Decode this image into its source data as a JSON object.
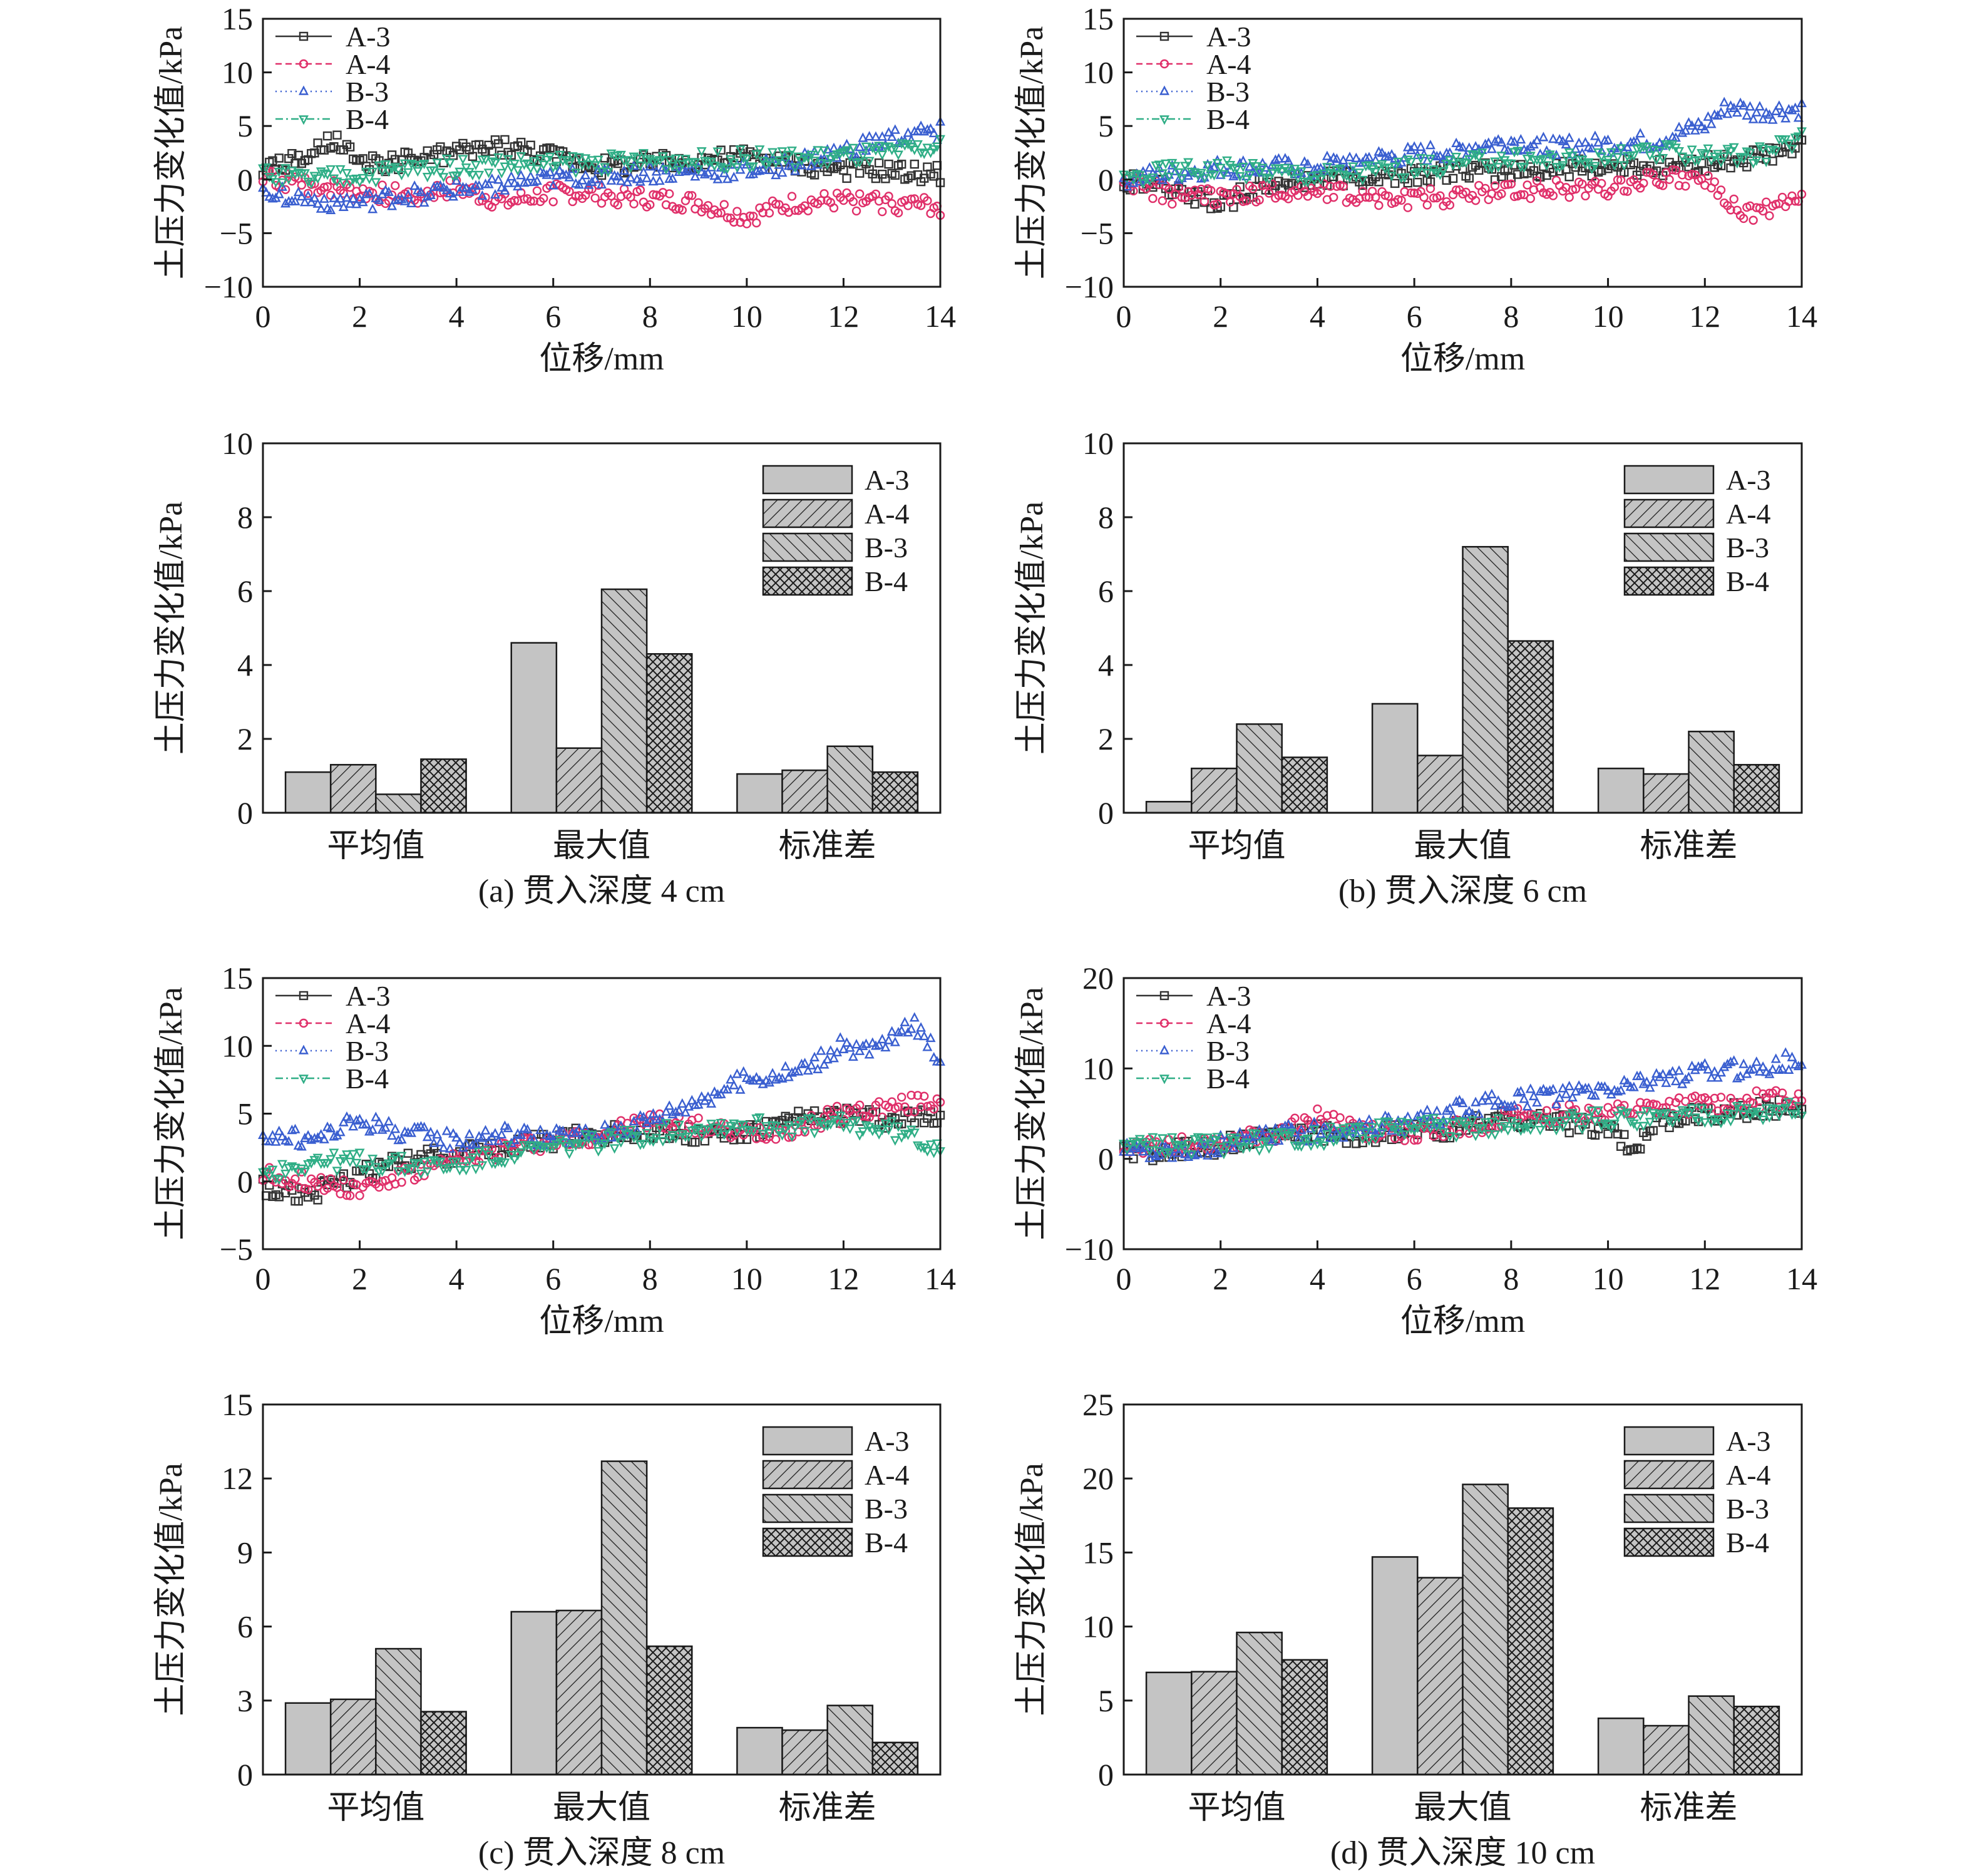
{
  "colors": {
    "A-3": "#333333",
    "A-4": "#e0306a",
    "B-3": "#3a5fd0",
    "B-4": "#2fae86",
    "bar_fill": "#c4c4c4"
  },
  "common": {
    "ylabel": "土压力变化值/kPa",
    "xlabel": "位移/mm",
    "legend": [
      "A-3",
      "A-4",
      "B-3",
      "B-4"
    ],
    "bar_categories": [
      "平均值",
      "最大值",
      "标准差"
    ]
  },
  "chart_data": [
    {
      "id": "a-line",
      "type": "scatter",
      "xlabel": "位移/mm",
      "ylabel": "土压力变化值/kPa",
      "xlim": [
        0,
        14
      ],
      "ylim": [
        -10,
        15
      ],
      "xticks": [
        0,
        2,
        4,
        6,
        8,
        10,
        12,
        14
      ],
      "yticks": [
        -10,
        -5,
        0,
        5,
        10,
        15
      ],
      "legend_position": "top-left",
      "series": [
        {
          "name": "A-3",
          "marker": "square",
          "dash": "",
          "x": [
            0,
            0.5,
            1,
            1.5,
            2,
            3,
            4,
            5,
            6,
            7,
            8,
            9,
            10,
            11,
            12,
            13,
            14
          ],
          "y": [
            1,
            1.5,
            2.2,
            3.8,
            1.2,
            1.8,
            2.5,
            3.2,
            2.2,
            1.2,
            1.5,
            1.8,
            2.2,
            1.4,
            1.0,
            0.8,
            0.5
          ]
        },
        {
          "name": "A-4",
          "marker": "circle",
          "dash": "10,6",
          "x": [
            0,
            1,
            2,
            3,
            4,
            5,
            6,
            7,
            8,
            9,
            10,
            11,
            12,
            13,
            14
          ],
          "y": [
            0,
            -0.5,
            -1.2,
            -1.5,
            -0.8,
            -2.2,
            -1.2,
            -1.4,
            -1.8,
            -2.2,
            -3.5,
            -2.2,
            -2.0,
            -2.2,
            -2.5
          ]
        },
        {
          "name": "B-3",
          "marker": "triangle-up",
          "dash": "2,6",
          "x": [
            0,
            1,
            2,
            3,
            4,
            5,
            6,
            7,
            8,
            9,
            10,
            11,
            12,
            13,
            14
          ],
          "y": [
            -1,
            -2,
            -2.2,
            -1.5,
            -1,
            -0.5,
            0,
            0.3,
            0.5,
            0.6,
            0.8,
            1.5,
            2.5,
            3.8,
            4.5
          ]
        },
        {
          "name": "B-4",
          "marker": "triangle-down",
          "dash": "12,5,3,5",
          "x": [
            0,
            1,
            2,
            3,
            4,
            5,
            6,
            7,
            8,
            9,
            10,
            11,
            12,
            13,
            14
          ],
          "y": [
            0.5,
            0,
            0.5,
            1,
            1.2,
            1.5,
            1.5,
            1.6,
            1.8,
            1.8,
            2,
            2,
            2.2,
            2.5,
            3
          ]
        }
      ]
    },
    {
      "id": "b-line",
      "type": "scatter",
      "xlabel": "位移/mm",
      "ylabel": "土压力变化值/kPa",
      "xlim": [
        0,
        14
      ],
      "ylim": [
        -10,
        15
      ],
      "xticks": [
        0,
        2,
        4,
        6,
        8,
        10,
        12,
        14
      ],
      "yticks": [
        -10,
        -5,
        0,
        5,
        10,
        15
      ],
      "legend_position": "top-left",
      "series": [
        {
          "name": "A-3",
          "marker": "square",
          "dash": "",
          "x": [
            0,
            1,
            2,
            3,
            4,
            5,
            6,
            7,
            8,
            9,
            10,
            11,
            12,
            13,
            14
          ],
          "y": [
            0,
            -0.8,
            -2.2,
            -0.5,
            0,
            0.3,
            0.5,
            0.8,
            0.8,
            1,
            1.2,
            1.2,
            1.5,
            2,
            3
          ]
        },
        {
          "name": "A-4",
          "marker": "circle",
          "dash": "10,6",
          "x": [
            0,
            1,
            2,
            3,
            4,
            5,
            6,
            7,
            8,
            9,
            10,
            11,
            12,
            12.5,
            13,
            14
          ],
          "y": [
            0,
            -1.5,
            -1.5,
            -1.2,
            -1,
            -1.5,
            -1.8,
            -1.5,
            -1,
            -0.8,
            -0.8,
            0.2,
            0,
            -2.5,
            -3,
            -2
          ]
        },
        {
          "name": "B-3",
          "marker": "triangle-up",
          "dash": "2,6",
          "x": [
            0,
            1,
            2,
            3,
            4,
            5,
            6,
            7,
            8,
            9,
            10,
            11,
            12,
            12.5,
            13,
            14
          ],
          "y": [
            0,
            0.5,
            1,
            1,
            1.2,
            1.8,
            2.2,
            2.8,
            3.5,
            3,
            3.2,
            3.5,
            5,
            6.8,
            6.2,
            6.5
          ]
        },
        {
          "name": "B-4",
          "marker": "triangle-down",
          "dash": "12,5,3,5",
          "x": [
            0,
            1,
            2,
            3,
            4,
            5,
            6,
            7,
            8,
            9,
            10,
            11,
            12,
            13,
            14
          ],
          "y": [
            0,
            1,
            1,
            0.8,
            0.5,
            0.8,
            1.2,
            1.5,
            2,
            1.8,
            2,
            2.5,
            2.5,
            2,
            4
          ]
        }
      ]
    },
    {
      "id": "a-bar",
      "type": "bar",
      "caption": "(a) 贯入深度 4 cm",
      "ylabel": "土压力变化值/kPa",
      "ylim": [
        0,
        10
      ],
      "yticks": [
        0,
        2,
        4,
        6,
        8,
        10
      ],
      "categories": [
        "平均值",
        "最大值",
        "标准差"
      ],
      "legend_position": "top-right",
      "series": [
        {
          "name": "A-3",
          "values": [
            1.1,
            4.6,
            1.05
          ]
        },
        {
          "name": "A-4",
          "values": [
            1.3,
            1.75,
            1.15
          ]
        },
        {
          "name": "B-3",
          "values": [
            0.5,
            6.05,
            1.8
          ]
        },
        {
          "name": "B-4",
          "values": [
            1.45,
            4.3,
            1.1
          ]
        }
      ]
    },
    {
      "id": "b-bar",
      "type": "bar",
      "caption": "(b) 贯入深度 6 cm",
      "ylabel": "土压力变化值/kPa",
      "ylim": [
        0,
        10
      ],
      "yticks": [
        0,
        2,
        4,
        6,
        8,
        10
      ],
      "categories": [
        "平均值",
        "最大值",
        "标准差"
      ],
      "legend_position": "top-right",
      "series": [
        {
          "name": "A-3",
          "values": [
            0.3,
            2.95,
            1.2
          ]
        },
        {
          "name": "A-4",
          "values": [
            1.2,
            1.55,
            1.05
          ]
        },
        {
          "name": "B-3",
          "values": [
            2.4,
            7.2,
            2.2
          ]
        },
        {
          "name": "B-4",
          "values": [
            1.5,
            4.65,
            1.3
          ]
        }
      ]
    },
    {
      "id": "c-line",
      "type": "scatter",
      "xlabel": "位移/mm",
      "ylabel": "土压力变化值/kPa",
      "xlim": [
        0,
        14
      ],
      "ylim": [
        -5,
        15
      ],
      "xticks": [
        0,
        2,
        4,
        6,
        8,
        10,
        12,
        14
      ],
      "yticks": [
        -5,
        0,
        5,
        10,
        15
      ],
      "legend_position": "top-left",
      "series": [
        {
          "name": "A-3",
          "marker": "square",
          "dash": "",
          "x": [
            0,
            1,
            2,
            3,
            4,
            5,
            6,
            7,
            8,
            9,
            10,
            11,
            12,
            13,
            14
          ],
          "y": [
            -0.5,
            -1,
            0.5,
            1.5,
            2,
            2.5,
            3,
            3.5,
            3.8,
            3.5,
            3.5,
            4.5,
            5,
            4.5,
            5
          ]
        },
        {
          "name": "A-4",
          "marker": "circle",
          "dash": "10,6",
          "x": [
            0,
            1,
            2,
            3,
            4,
            5,
            6,
            7,
            8,
            9,
            10,
            11,
            12,
            13,
            14
          ],
          "y": [
            0.5,
            0,
            -0.5,
            0.5,
            1.5,
            2.5,
            3,
            3.5,
            4.5,
            4,
            3.5,
            4,
            5,
            5.5,
            6
          ]
        },
        {
          "name": "B-3",
          "marker": "triangle-up",
          "dash": "2,6",
          "x": [
            0,
            1,
            2,
            3,
            4,
            5,
            6,
            7,
            8,
            9,
            10,
            11,
            12,
            12.5,
            13,
            13.5,
            14
          ],
          "y": [
            3.5,
            3,
            4.5,
            3.5,
            3,
            3.5,
            3.2,
            3.5,
            4.5,
            6,
            7.5,
            8,
            10,
            9.5,
            10.5,
            11.5,
            9
          ]
        },
        {
          "name": "B-4",
          "marker": "triangle-down",
          "dash": "12,5,3,5",
          "x": [
            0,
            1,
            2,
            3,
            4,
            5,
            6,
            7,
            8,
            9,
            10,
            11,
            12,
            13,
            14
          ],
          "y": [
            0.5,
            1.5,
            1.5,
            1.2,
            1.2,
            2,
            2.5,
            3,
            3.5,
            4,
            4.2,
            4,
            4.2,
            3.8,
            2.5
          ]
        }
      ]
    },
    {
      "id": "d-line",
      "type": "scatter",
      "xlabel": "位移/mm",
      "ylabel": "土压力变化值/kPa",
      "xlim": [
        0,
        14
      ],
      "ylim": [
        -10,
        20
      ],
      "xticks": [
        0,
        2,
        4,
        6,
        8,
        10,
        12,
        14
      ],
      "yticks": [
        -10,
        0,
        10,
        20
      ],
      "legend_position": "top-left",
      "series": [
        {
          "name": "A-3",
          "marker": "square",
          "dash": "",
          "x": [
            0,
            1,
            2,
            3,
            4,
            5,
            6,
            7,
            8,
            9,
            10,
            10.5,
            11,
            12,
            13,
            14
          ],
          "y": [
            0.5,
            1,
            1.5,
            2.5,
            3,
            2.5,
            3,
            3.5,
            4.5,
            4,
            3.5,
            1,
            4,
            5,
            5.5,
            6
          ]
        },
        {
          "name": "A-4",
          "marker": "circle",
          "dash": "10,6",
          "x": [
            0,
            1,
            2,
            3,
            4,
            5,
            6,
            7,
            8,
            9,
            10,
            11,
            12,
            13,
            14
          ],
          "y": [
            1.5,
            1.5,
            2,
            2.5,
            4.5,
            3,
            3,
            3.5,
            4.5,
            5,
            5,
            5.5,
            6,
            6.5,
            7
          ]
        },
        {
          "name": "B-3",
          "marker": "triangle-up",
          "dash": "2,6",
          "x": [
            0,
            1,
            2,
            3,
            4,
            5,
            6,
            7,
            8,
            9,
            10,
            11,
            12,
            13,
            14
          ],
          "y": [
            1,
            1,
            1.5,
            2.5,
            3,
            3.5,
            4,
            5.5,
            6.5,
            7,
            7.5,
            9,
            9.5,
            10,
            11
          ]
        },
        {
          "name": "B-4",
          "marker": "triangle-down",
          "dash": "12,5,3,5",
          "x": [
            0,
            1,
            2,
            3,
            4,
            5,
            6,
            7,
            8,
            9,
            10,
            11,
            12,
            13,
            14
          ],
          "y": [
            1.5,
            1.5,
            1.5,
            2,
            2.5,
            3,
            3.5,
            3.5,
            3.5,
            4,
            4.5,
            4.5,
            5,
            5,
            5.5
          ]
        }
      ]
    },
    {
      "id": "c-bar",
      "type": "bar",
      "caption": "(c) 贯入深度 8 cm",
      "ylabel": "土压力变化值/kPa",
      "ylim": [
        0,
        15
      ],
      "yticks": [
        0,
        3,
        6,
        9,
        12,
        15
      ],
      "categories": [
        "平均值",
        "最大值",
        "标准差"
      ],
      "legend_position": "top-right",
      "series": [
        {
          "name": "A-3",
          "values": [
            2.9,
            6.6,
            1.9
          ]
        },
        {
          "name": "A-4",
          "values": [
            3.05,
            6.65,
            1.8
          ]
        },
        {
          "name": "B-3",
          "values": [
            5.1,
            12.7,
            2.8
          ]
        },
        {
          "name": "B-4",
          "values": [
            2.55,
            5.2,
            1.3
          ]
        }
      ]
    },
    {
      "id": "d-bar",
      "type": "bar",
      "caption": "(d) 贯入深度 10 cm",
      "ylabel": "土压力变化值/kPa",
      "ylim": [
        0,
        25
      ],
      "yticks": [
        0,
        5,
        10,
        15,
        20,
        25
      ],
      "categories": [
        "平均值",
        "最大值",
        "标准差"
      ],
      "legend_position": "top-right",
      "series": [
        {
          "name": "A-3",
          "values": [
            6.9,
            14.7,
            3.8
          ]
        },
        {
          "name": "A-4",
          "values": [
            6.95,
            13.3,
            3.3
          ]
        },
        {
          "name": "B-3",
          "values": [
            9.6,
            19.6,
            5.3
          ]
        },
        {
          "name": "B-4",
          "values": [
            7.75,
            18,
            4.6
          ]
        }
      ]
    }
  ]
}
